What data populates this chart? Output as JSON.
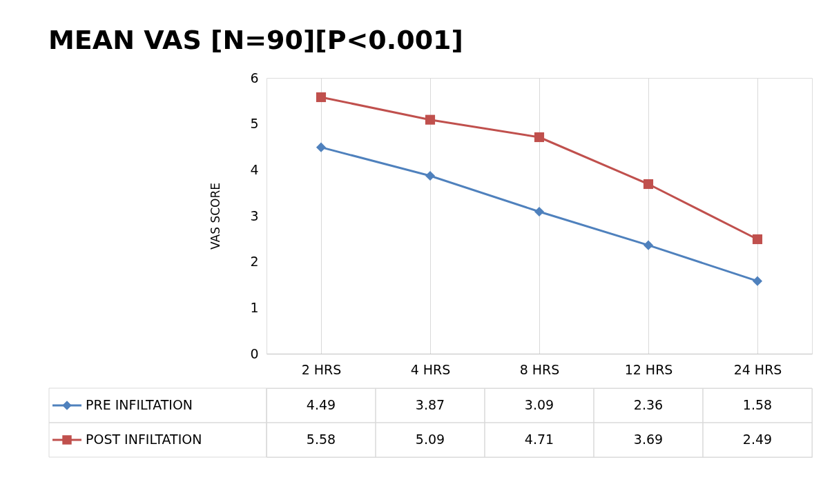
{
  "chart_data": {
    "type": "line",
    "title": "MEAN VAS [N=90][P<0.001]",
    "ylabel": "VAS SCORE",
    "categories": [
      "2 HRS",
      "4 HRS",
      "8 HRS",
      "12 HRS",
      "24 HRS"
    ],
    "series": [
      {
        "name": "PRE INFILTATION",
        "color": "#4f81bd",
        "marker": "diamond",
        "values": [
          4.49,
          3.87,
          3.09,
          2.36,
          1.58
        ]
      },
      {
        "name": "POST INFILTATION",
        "color": "#c0504d",
        "marker": "square",
        "values": [
          5.58,
          5.09,
          4.71,
          3.69,
          2.49
        ]
      }
    ],
    "ylim": [
      0,
      6
    ],
    "yticks": [
      0,
      1,
      2,
      3,
      4,
      5,
      6
    ],
    "grid": "x",
    "legend": "bottom",
    "data_labels": true,
    "line_style": "solid"
  }
}
